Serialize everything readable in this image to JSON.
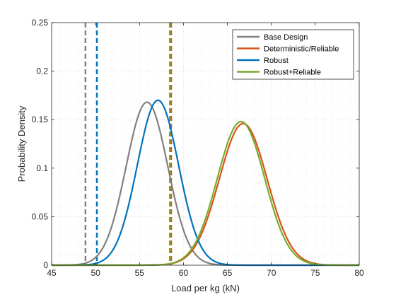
{
  "chart_data": {
    "type": "line",
    "xlabel": "Load per kg (kN)",
    "ylabel": "Probability Density",
    "xlim": [
      45,
      80
    ],
    "ylim": [
      0,
      0.25
    ],
    "xticks": [
      45,
      50,
      55,
      60,
      65,
      70,
      75,
      80
    ],
    "xtick_labels": [
      "45",
      "50",
      "55",
      "60",
      "65",
      "70",
      "75",
      "80"
    ],
    "yticks": [
      0,
      0.05,
      0.1,
      0.15,
      0.2,
      0.25
    ],
    "ytick_labels": [
      "0",
      "0.05",
      "0.1",
      "0.15",
      "0.2",
      "0.25"
    ],
    "grid": "on (major and minor, dotted)",
    "legend_location": "top-right",
    "series": [
      {
        "name": "Base Design",
        "color": "#808080",
        "style": "normal-pdf",
        "mean": 55.85,
        "std": 2.37,
        "peak": 0.168,
        "threshold": 48.85
      },
      {
        "name": "Deterministic/Reliable",
        "color": "#d95319",
        "style": "normal-pdf",
        "mean": 66.8,
        "std": 2.73,
        "peak": 0.146,
        "threshold": 58.6
      },
      {
        "name": "Robust",
        "color": "#0072bd",
        "style": "normal-pdf",
        "mean": 57.1,
        "std": 2.35,
        "peak": 0.17,
        "threshold": 50.15
      },
      {
        "name": "Robust+Reliable",
        "color": "#77ac30",
        "style": "normal-pdf",
        "mean": 66.55,
        "std": 2.69,
        "peak": 0.148,
        "threshold": 58.45
      }
    ]
  }
}
